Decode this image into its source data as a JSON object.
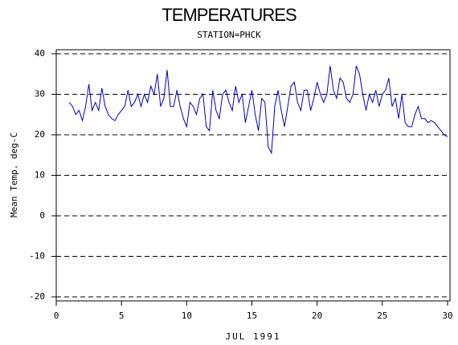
{
  "chart_data": {
    "type": "line",
    "title": "TEMPERATURES",
    "subtitle": "STATION=PHCK",
    "x_label": "JUL 1991",
    "y_label": "Mean Temp. deg-C",
    "xlim": [
      0,
      30
    ],
    "xticks": [
      0,
      5,
      10,
      15,
      20,
      25,
      30
    ],
    "ylim": [
      -20,
      40
    ],
    "yticks": [
      -20,
      -10,
      0,
      10,
      20,
      30,
      40
    ],
    "grid": true,
    "x": [
      1,
      1.25,
      1.5,
      1.75,
      2,
      2.25,
      2.5,
      2.75,
      3,
      3.25,
      3.5,
      3.75,
      4,
      4.25,
      4.5,
      4.75,
      5,
      5.25,
      5.5,
      5.75,
      6,
      6.25,
      6.5,
      6.75,
      7,
      7.25,
      7.5,
      7.75,
      8,
      8.25,
      8.5,
      8.75,
      9,
      9.25,
      9.5,
      9.75,
      10,
      10.25,
      10.5,
      10.75,
      11,
      11.25,
      11.5,
      11.75,
      12,
      12.25,
      12.5,
      12.75,
      13,
      13.25,
      13.5,
      13.75,
      14,
      14.25,
      14.5,
      14.75,
      15,
      15.25,
      15.5,
      15.75,
      16,
      16.25,
      16.5,
      16.75,
      17,
      17.25,
      17.5,
      17.75,
      18,
      18.25,
      18.5,
      18.75,
      19,
      19.25,
      19.5,
      19.75,
      20,
      20.25,
      20.5,
      20.75,
      21,
      21.25,
      21.5,
      21.75,
      22,
      22.25,
      22.5,
      22.75,
      23,
      23.25,
      23.5,
      23.75,
      24,
      24.25,
      24.5,
      24.75,
      25,
      25.25,
      25.5,
      25.75,
      26,
      26.25,
      26.5,
      26.75,
      27,
      27.25,
      27.5,
      27.75,
      28,
      28.25,
      28.5,
      28.75,
      29,
      29.25,
      29.5,
      29.75,
      30
    ],
    "series": [
      {
        "name": "Mean Temp",
        "color": "#0000cc",
        "values": [
          28,
          27,
          25,
          26,
          23.5,
          27,
          32.5,
          26,
          28,
          26,
          31.5,
          27,
          25,
          24,
          23.5,
          25,
          26,
          27,
          31,
          27,
          28,
          30,
          27,
          30,
          28,
          32,
          30,
          35,
          27,
          29,
          36,
          27,
          27,
          31,
          27,
          24,
          22,
          28,
          27,
          25,
          29,
          30,
          22,
          21,
          31,
          26,
          24,
          30,
          31,
          28,
          26,
          32,
          28,
          30,
          23,
          27,
          31,
          25,
          21,
          29,
          28,
          17,
          15.5,
          27,
          31,
          26,
          22,
          27,
          32,
          33,
          28,
          26,
          31,
          31,
          26,
          29,
          33,
          30,
          28,
          30,
          37,
          31,
          29,
          34,
          33,
          29,
          28,
          30,
          37,
          35,
          30,
          26,
          30,
          28,
          31,
          27,
          30,
          31,
          34,
          27,
          29,
          24,
          30,
          23,
          22,
          22,
          25,
          27,
          24,
          24,
          23,
          23.5,
          23,
          22,
          21,
          20,
          19.5
        ]
      }
    ]
  }
}
